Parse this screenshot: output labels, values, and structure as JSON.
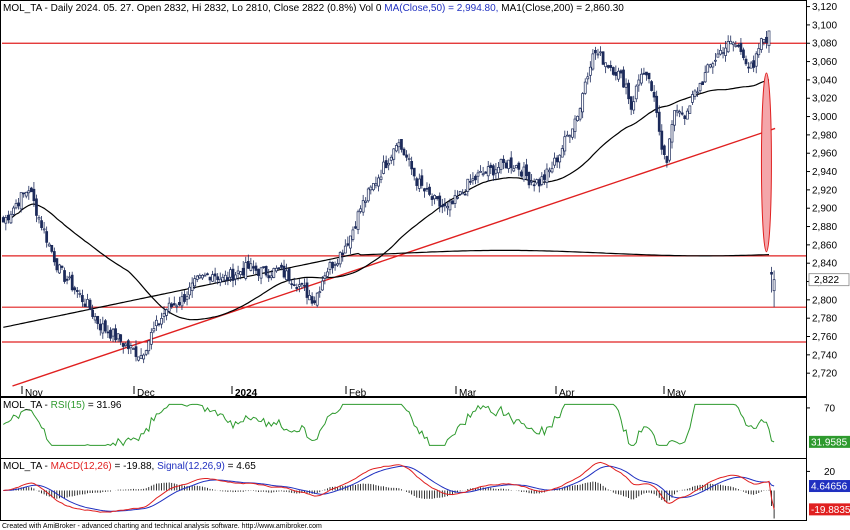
{
  "chart_data": [
    {
      "type": "candlestick",
      "header": {
        "symbol": "MOL_TA",
        "period": "Daily",
        "date": "2024. 05. 27.",
        "open_label": "Open 2832,",
        "high_label": "Hi 2832,",
        "low_label": "Lo 2810,",
        "close_label": "Close 2822 (0.8%)",
        "vol_label": "Vol 0",
        "ma_label": "MA(Close,50) = 2,994.80,",
        "ma1_label": "MA1(Close,200) = 2,860.30"
      },
      "ylim": [
        2706,
        3125
      ],
      "y_ticks": [
        "2,720",
        "2,740",
        "2,760",
        "2,780",
        "2,800",
        "2,820",
        "2,840",
        "2,860",
        "2,880",
        "2,900",
        "2,920",
        "2,940",
        "2,960",
        "2,980",
        "3,000",
        "3,020",
        "3,040",
        "3,060",
        "3,080",
        "3,100",
        "3,120"
      ],
      "x_labels": [
        "Nov",
        "Dec",
        "2024",
        "Feb",
        "Mar",
        "Apr",
        "May"
      ],
      "last_price_label": "2,822",
      "horizontal_levels": [
        3080,
        2848,
        2792,
        2754
      ],
      "trendline": {
        "from": [
          2,
          2706
        ],
        "to": [
          168,
          2987
        ]
      },
      "colors": {
        "up": "#ffffff",
        "down": "#1c2a5a",
        "ma50": "#000000",
        "ma200": "#000000",
        "lines": "#e02020",
        "gap_ellipse": "#f4a6aa"
      },
      "candles": []
    },
    {
      "type": "line",
      "title": "MOL_TA - RSI(15) = 31.96",
      "label_prefix": "MOL_TA - ",
      "label_name": "RSI(15)",
      "label_value": " = 31.96",
      "ylim": [
        15,
        80
      ],
      "y_ticks": [
        "70"
      ],
      "last_value_label": "31.9585",
      "color": "#2e9a2e"
    },
    {
      "type": "line",
      "label_prefix": "MOL_TA - ",
      "macd_name": "MACD(12,26)",
      "macd_value": " = -19.88,",
      "signal_name": "Signal(12,26,9)",
      "signal_value": " = 4.65",
      "ylim": [
        -30,
        32
      ],
      "y_ticks": [
        "20"
      ],
      "macd_last_label": "-19.8835",
      "signal_last_label": "4.64656",
      "colors": {
        "macd": "#e02020",
        "signal": "#2030c0",
        "hist": "#000000"
      }
    }
  ],
  "footer": "Created with AmiBroker - advanced charting and technical analysis software. http://www.amibroker.com"
}
